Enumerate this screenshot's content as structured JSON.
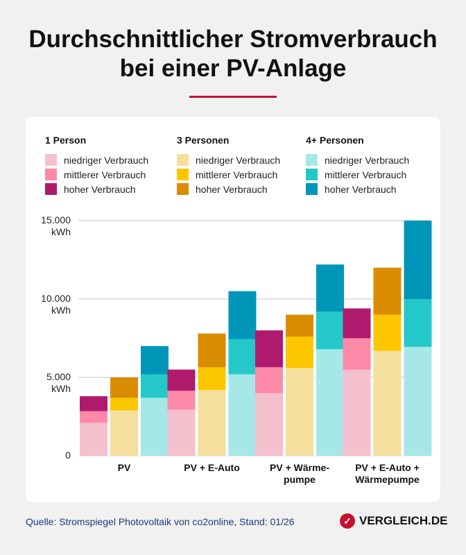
{
  "title_line1": "Durchschnittlicher Stromverbrauch",
  "title_line2": "bei einer PV-Anlage",
  "accent_color": "#c8102e",
  "legend": [
    {
      "group": "1 Person",
      "items": [
        {
          "label": "niedriger Verbrauch",
          "color": "#f4c0cd"
        },
        {
          "label": "mittlerer Verbrauch",
          "color": "#fd89a8"
        },
        {
          "label": "hoher Verbrauch",
          "color": "#b01a6e"
        }
      ]
    },
    {
      "group": "3 Personen",
      "items": [
        {
          "label": "niedriger Verbrauch",
          "color": "#f5df9c"
        },
        {
          "label": "mittlerer Verbrauch",
          "color": "#fdc700"
        },
        {
          "label": "hoher Verbrauch",
          "color": "#da8c00"
        }
      ]
    },
    {
      "group": "4+ Personen",
      "items": [
        {
          "label": "niedriger Verbrauch",
          "color": "#a6e8e8"
        },
        {
          "label": "mittlerer Verbrauch",
          "color": "#24c8c9"
        },
        {
          "label": "hoher Verbrauch",
          "color": "#0096b9"
        }
      ]
    }
  ],
  "chart_data": {
    "type": "bar",
    "stacked": "overlay",
    "categories": [
      "PV",
      "PV + E-Auto",
      "PV + Wärme-pumpe",
      "PV + E-Auto + Wärmepumpe"
    ],
    "category_lines": [
      [
        "PV"
      ],
      [
        "PV + E-Auto"
      ],
      [
        "PV + Wärme-",
        "pumpe"
      ],
      [
        "PV + E-Auto +",
        "Wärmepumpe"
      ]
    ],
    "unit": "kWh",
    "ylim": [
      0,
      15000
    ],
    "yticks": [
      0,
      5000,
      10000,
      15000
    ],
    "ytick_labels": [
      [
        "0"
      ],
      [
        "5.000",
        "kWh"
      ],
      [
        "10.000",
        "kWh"
      ],
      [
        "15.000",
        "kWh"
      ]
    ],
    "grid": true,
    "legend_position": "top",
    "series": [
      {
        "household": "1 Person",
        "niedriger": [
          2100,
          2950,
          4000,
          5500
        ],
        "mittlerer": [
          2850,
          4150,
          5650,
          7500
        ],
        "hoher": [
          3800,
          5500,
          8000,
          9400
        ]
      },
      {
        "household": "3 Personen",
        "niedriger": [
          2900,
          4200,
          5600,
          6700
        ],
        "mittlerer": [
          3700,
          5650,
          7600,
          9000
        ],
        "hoher": [
          5000,
          7800,
          9000,
          12000
        ]
      },
      {
        "household": "4+ Personen",
        "niedriger": [
          3700,
          5200,
          6800,
          6950
        ],
        "mittlerer": [
          5200,
          7450,
          9200,
          10000
        ],
        "hoher": [
          7000,
          10500,
          12200,
          15000
        ]
      }
    ]
  },
  "footer": {
    "source": "Quelle: Stromspiegel Photovoltaik von co2online, Stand: 01/26",
    "logo_text": "VERGLEICH.DE",
    "logo_icon": "check-icon"
  }
}
